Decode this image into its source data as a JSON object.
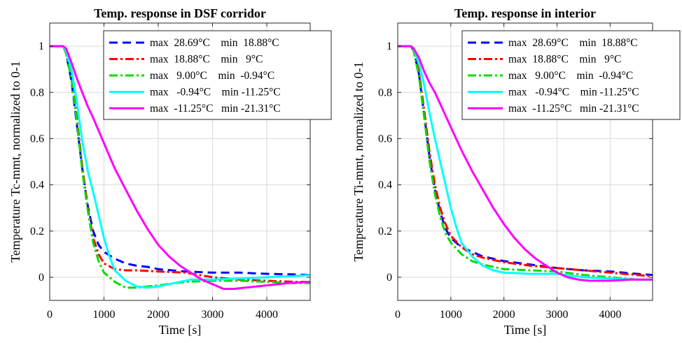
{
  "chart_data": [
    {
      "type": "line",
      "title": "Temp. response in DSF corridor",
      "xlabel": "Time [s]",
      "ylabel": "Temperature Tc-mmt, normalized to 0-1",
      "xlim": [
        0,
        4800
      ],
      "ylim": [
        -0.1,
        1.1
      ],
      "xticks": [
        0,
        1000,
        2000,
        3000,
        4000
      ],
      "xtick_labels": [
        "0",
        "1000",
        "2000",
        "3000",
        "4000"
      ],
      "yticks": [
        0,
        0.2,
        0.4,
        0.6,
        0.8,
        1
      ],
      "ytick_labels": [
        "0",
        "0.2",
        "0.4",
        "0.6",
        "0.8",
        "1"
      ],
      "grid": true,
      "legend_position": "top-right",
      "series": [
        {
          "name": "max  28.69°C    min  18.88°C",
          "color": "#0000ff",
          "style": "dashed",
          "x": [
            0,
            250,
            300,
            400,
            500,
            600,
            700,
            800,
            900,
            1000,
            1200,
            1400,
            1600,
            1800,
            2000,
            2500,
            3000,
            3500,
            4000,
            4500,
            4800
          ],
          "y": [
            1,
            1,
            0.97,
            0.85,
            0.66,
            0.47,
            0.31,
            0.2,
            0.14,
            0.11,
            0.08,
            0.06,
            0.05,
            0.045,
            0.035,
            0.025,
            0.02,
            0.02,
            0.015,
            0.012,
            0.01
          ]
        },
        {
          "name": "max  18.88°C    min   9°C",
          "color": "#ff0000",
          "style": "dashdot",
          "x": [
            0,
            250,
            300,
            400,
            500,
            600,
            700,
            800,
            900,
            1000,
            1200,
            1400,
            1600,
            2000,
            2500,
            3000,
            3500,
            4000,
            4500,
            4800
          ],
          "y": [
            1,
            1,
            0.97,
            0.87,
            0.69,
            0.48,
            0.3,
            0.17,
            0.1,
            0.06,
            0.035,
            0.03,
            0.03,
            0.025,
            0.02,
            0.0,
            -0.01,
            -0.015,
            -0.02,
            -0.02
          ]
        },
        {
          "name": "max   9.00°C    min  -0.94°C",
          "color": "#00dd00",
          "style": "dashdot",
          "x": [
            0,
            250,
            300,
            400,
            500,
            600,
            700,
            800,
            900,
            1000,
            1200,
            1400,
            1600,
            1800,
            2000,
            2500,
            3000,
            3500,
            4000,
            4500,
            4800
          ],
          "y": [
            1,
            1,
            0.97,
            0.86,
            0.67,
            0.46,
            0.29,
            0.15,
            0.07,
            0.02,
            -0.02,
            -0.045,
            -0.045,
            -0.04,
            -0.035,
            -0.02,
            -0.015,
            -0.015,
            -0.02,
            -0.025,
            -0.025
          ]
        },
        {
          "name": "max   -0.94°C    min -11.25°C",
          "color": "#00ffff",
          "style": "solid",
          "x": [
            0,
            250,
            300,
            400,
            500,
            600,
            700,
            800,
            900,
            1000,
            1100,
            1200,
            1400,
            1600,
            1800,
            2000,
            2200,
            2400,
            2600,
            3000,
            3500,
            4000,
            4500,
            4800
          ],
          "y": [
            1,
            1,
            0.98,
            0.9,
            0.76,
            0.59,
            0.46,
            0.37,
            0.27,
            0.17,
            0.09,
            0.03,
            -0.015,
            -0.04,
            -0.045,
            -0.04,
            -0.03,
            -0.02,
            -0.01,
            -0.01,
            -0.005,
            0.0,
            0.005,
            0.01
          ]
        },
        {
          "name": "max  -11.25°C   min -21.31°C",
          "color": "#ff00ff",
          "style": "solid",
          "x": [
            0,
            250,
            300,
            400,
            500,
            600,
            700,
            800,
            1000,
            1200,
            1400,
            1600,
            1800,
            2000,
            2200,
            2400,
            2600,
            2800,
            3000,
            3200,
            3400,
            3600,
            4000,
            4400,
            4800
          ],
          "y": [
            1,
            1,
            0.99,
            0.93,
            0.86,
            0.8,
            0.74,
            0.69,
            0.58,
            0.47,
            0.38,
            0.29,
            0.21,
            0.14,
            0.09,
            0.05,
            0.02,
            -0.01,
            -0.03,
            -0.05,
            -0.05,
            -0.045,
            -0.035,
            -0.025,
            -0.02
          ]
        }
      ]
    },
    {
      "type": "line",
      "title": "Temp. response in interior",
      "xlabel": "Time [s]",
      "ylabel": "Temperature Ti-mmt, normalized to 0-1",
      "xlim": [
        0,
        4800
      ],
      "ylim": [
        -0.1,
        1.1
      ],
      "xticks": [
        0,
        1000,
        2000,
        3000,
        4000
      ],
      "xtick_labels": [
        "0",
        "1000",
        "2000",
        "3000",
        "4000"
      ],
      "yticks": [
        0,
        0.2,
        0.4,
        0.6,
        0.8,
        1
      ],
      "ytick_labels": [
        "0",
        "0.2",
        "0.4",
        "0.6",
        "0.8",
        "1"
      ],
      "grid": true,
      "legend_position": "top-right",
      "series": [
        {
          "name": "max  28.69°C    min  18.88°C",
          "color": "#0000ff",
          "style": "dashed",
          "x": [
            0,
            250,
            300,
            400,
            500,
            600,
            700,
            800,
            900,
            1000,
            1200,
            1400,
            1600,
            1800,
            2000,
            2500,
            3000,
            3500,
            4000,
            4500,
            4800
          ],
          "y": [
            1,
            1,
            0.98,
            0.88,
            0.7,
            0.52,
            0.38,
            0.28,
            0.21,
            0.17,
            0.13,
            0.11,
            0.09,
            0.08,
            0.07,
            0.055,
            0.04,
            0.03,
            0.025,
            0.015,
            0.01
          ]
        },
        {
          "name": "max  18.88°C    min   9°C",
          "color": "#ff0000",
          "style": "dashdot",
          "x": [
            0,
            250,
            300,
            400,
            500,
            600,
            700,
            800,
            900,
            1000,
            1200,
            1400,
            1600,
            1800,
            2000,
            2500,
            3000,
            3500,
            4000,
            4500,
            4800
          ],
          "y": [
            1,
            1,
            0.98,
            0.89,
            0.72,
            0.54,
            0.4,
            0.3,
            0.23,
            0.18,
            0.13,
            0.1,
            0.085,
            0.075,
            0.065,
            0.05,
            0.04,
            0.03,
            0.02,
            0.01,
            0.005
          ]
        },
        {
          "name": "max   9.00°C    min  -0.94°C",
          "color": "#00dd00",
          "style": "dashdot",
          "x": [
            0,
            250,
            300,
            400,
            500,
            600,
            700,
            800,
            900,
            1000,
            1200,
            1400,
            1600,
            1800,
            2000,
            2500,
            3000,
            3500,
            4000,
            4500,
            4800
          ],
          "y": [
            1,
            1,
            0.98,
            0.87,
            0.69,
            0.5,
            0.36,
            0.26,
            0.19,
            0.15,
            0.1,
            0.07,
            0.055,
            0.045,
            0.035,
            0.03,
            0.025,
            0.01,
            0.0,
            -0.01,
            -0.01
          ]
        },
        {
          "name": "max   -0.94°C    min -11.25°C",
          "color": "#00ffff",
          "style": "solid",
          "x": [
            0,
            250,
            300,
            400,
            500,
            600,
            700,
            800,
            900,
            1000,
            1100,
            1200,
            1400,
            1600,
            1800,
            2000,
            2500,
            3000,
            3500,
            4000,
            4500,
            4800
          ],
          "y": [
            1,
            1,
            0.99,
            0.93,
            0.83,
            0.71,
            0.6,
            0.5,
            0.4,
            0.3,
            0.22,
            0.15,
            0.09,
            0.05,
            0.03,
            0.02,
            0.015,
            0.015,
            0.0,
            -0.005,
            -0.01,
            -0.01
          ]
        },
        {
          "name": "max  -11.25°C   min -21.31°C",
          "color": "#ff00ff",
          "style": "solid",
          "x": [
            0,
            250,
            300,
            400,
            500,
            600,
            700,
            800,
            1000,
            1200,
            1400,
            1600,
            1800,
            2000,
            2200,
            2400,
            2600,
            2800,
            3000,
            3200,
            3400,
            3600,
            4000,
            4400,
            4800
          ],
          "y": [
            1,
            1,
            0.99,
            0.95,
            0.89,
            0.84,
            0.8,
            0.75,
            0.65,
            0.55,
            0.46,
            0.38,
            0.3,
            0.23,
            0.17,
            0.12,
            0.08,
            0.05,
            0.02,
            0.0,
            -0.01,
            -0.015,
            -0.015,
            -0.01,
            -0.01
          ]
        }
      ]
    }
  ]
}
